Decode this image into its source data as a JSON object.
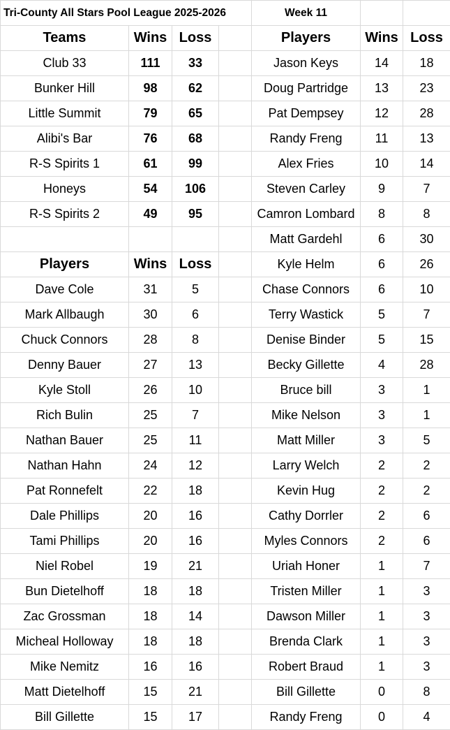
{
  "title": "Tri-County All Stars Pool League 2025-2026",
  "week": "Week 11",
  "teams": {
    "headers": [
      "Teams",
      "Wins",
      "Loss"
    ],
    "rows": [
      [
        "Club 33",
        "111",
        "33"
      ],
      [
        "Bunker Hill",
        "98",
        "62"
      ],
      [
        "Little Summit",
        "79",
        "65"
      ],
      [
        "Alibi's Bar",
        "76",
        "68"
      ],
      [
        "R-S Spirits 1",
        "61",
        "99"
      ],
      [
        "Honeys",
        "54",
        "106"
      ],
      [
        "R-S Spirits 2",
        "49",
        "95"
      ]
    ]
  },
  "players_left": {
    "headers": [
      "Players",
      "Wins",
      "Loss"
    ],
    "rows": [
      [
        "Dave Cole",
        "31",
        "5"
      ],
      [
        "Mark Allbaugh",
        "30",
        "6"
      ],
      [
        "Chuck Connors",
        "28",
        "8"
      ],
      [
        "Denny Bauer",
        "27",
        "13"
      ],
      [
        "Kyle Stoll",
        "26",
        "10"
      ],
      [
        "Rich Bulin",
        "25",
        "7"
      ],
      [
        "Nathan Bauer",
        "25",
        "11"
      ],
      [
        "Nathan Hahn",
        "24",
        "12"
      ],
      [
        "Pat Ronnefelt",
        "22",
        "18"
      ],
      [
        "Dale Phillips",
        "20",
        "16"
      ],
      [
        "Tami Phillips",
        "20",
        "16"
      ],
      [
        "Niel Robel",
        "19",
        "21"
      ],
      [
        "Bun Dietelhoff",
        "18",
        "18"
      ],
      [
        "Zac Grossman",
        "18",
        "14"
      ],
      [
        "Micheal Holloway",
        "18",
        "18"
      ],
      [
        "Mike Nemitz",
        "16",
        "16"
      ],
      [
        "Matt Dietelhoff",
        "15",
        "21"
      ],
      [
        "Bill Gillette",
        "15",
        "17"
      ]
    ]
  },
  "players_right": {
    "headers": [
      "Players",
      "Wins",
      "Loss"
    ],
    "rows": [
      [
        "Jason Keys",
        "14",
        "18"
      ],
      [
        "Doug Partridge",
        "13",
        "23"
      ],
      [
        "Pat Dempsey",
        "12",
        "28"
      ],
      [
        "Randy Freng",
        "11",
        "13"
      ],
      [
        "Alex Fries",
        "10",
        "14"
      ],
      [
        "Steven Carley",
        "9",
        "7"
      ],
      [
        "Camron Lombard",
        "8",
        "8"
      ],
      [
        "Matt Gardehl",
        "6",
        "30"
      ],
      [
        "Kyle Helm",
        "6",
        "26"
      ],
      [
        "Chase Connors",
        "6",
        "10"
      ],
      [
        "Terry Wastick",
        "5",
        "7"
      ],
      [
        "Denise Binder",
        "5",
        "15"
      ],
      [
        "Becky Gillette",
        "4",
        "28"
      ],
      [
        "Bruce bill",
        "3",
        "1"
      ],
      [
        "Mike Nelson",
        "3",
        "1"
      ],
      [
        "Matt Miller",
        "3",
        "5"
      ],
      [
        "Larry Welch",
        "2",
        "2"
      ],
      [
        "Kevin Hug",
        "2",
        "2"
      ],
      [
        "Cathy Dorrler",
        "2",
        "6"
      ],
      [
        "Myles Connors",
        "2",
        "6"
      ],
      [
        "Uriah Honer",
        "1",
        "7"
      ],
      [
        "Tristen Miller",
        "1",
        "3"
      ],
      [
        "Dawson Miller",
        "1",
        "3"
      ],
      [
        "Brenda Clark",
        "1",
        "3"
      ],
      [
        "Robert Braud",
        "1",
        "3"
      ],
      [
        "Bill Gillette",
        "0",
        "8"
      ],
      [
        "Randy Freng",
        "0",
        "4"
      ]
    ]
  }
}
